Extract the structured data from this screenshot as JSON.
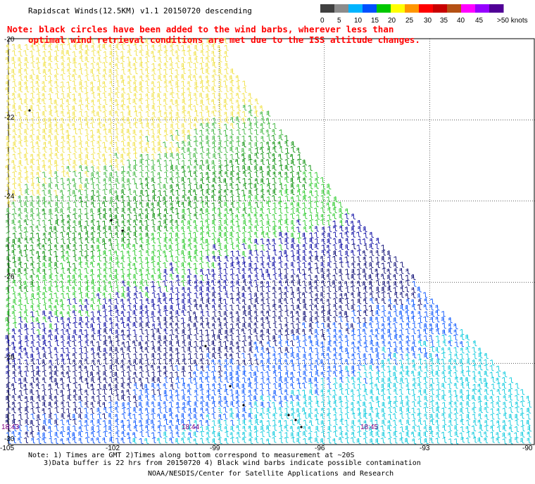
{
  "header": {
    "title": "Rapidscat Winds(12.5KM) v1.1 20150720 descending",
    "note_line1": "Note: black circles have been added to the wind barbs, wherever less than",
    "note_line2": "optimal wind retrieval conditions are met due to the ISS altitude changes."
  },
  "legend": {
    "labels": [
      "0",
      "5",
      "10",
      "15",
      "20",
      "25",
      "30",
      "35",
      "40",
      "45",
      ">50 knots"
    ],
    "colors": [
      "#404040",
      "#8c8c8c",
      "#00b4ff",
      "#0050ff",
      "#00c800",
      "#ffff00",
      "#ff9600",
      "#ff0000",
      "#c80000",
      "#b45014",
      "#ff00ff",
      "#9600ff",
      "#500096"
    ]
  },
  "map": {
    "lat_labels": [
      "-20",
      "-22",
      "-24",
      "-26",
      "-28",
      "-30"
    ],
    "lon_labels": [
      "-105",
      "-102",
      "-99",
      "-96",
      "-93",
      "-90"
    ],
    "time_labels": [
      "18:43",
      "18:44",
      "18:45"
    ],
    "time_color": "#800080",
    "line_color": "#000000"
  },
  "footer": {
    "line1": "Note: 1) Times are GMT 2)Times along bottom correspond to measurement at ~20S",
    "line2": "3)Data buffer is 22 hrs from 20150720 4) Black wind barbs indicate possible contamination",
    "line3": "NOAA/NESDIS/Center for Satellite Applications and Research"
  }
}
